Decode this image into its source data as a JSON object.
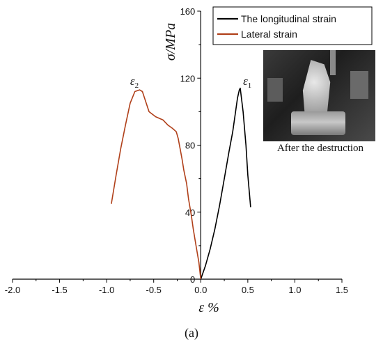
{
  "chart_data": {
    "type": "line",
    "title": "",
    "xlabel": "ε %",
    "ylabel": "σ/MPa",
    "xlim": [
      -2.0,
      1.5
    ],
    "ylim": [
      0,
      160
    ],
    "x_ticks": [
      "-2.0",
      "-1.5",
      "-1.0",
      "-0.5",
      "0.0",
      "0.5",
      "1.0",
      "1.5"
    ],
    "y_ticks": [
      "0",
      "40",
      "80",
      "120",
      "160"
    ],
    "legend_position": "top-right",
    "series": [
      {
        "name": "The longitudinal strain",
        "color": "#000000",
        "points": [
          [
            0.0,
            0
          ],
          [
            0.05,
            8
          ],
          [
            0.1,
            18
          ],
          [
            0.15,
            30
          ],
          [
            0.2,
            44
          ],
          [
            0.25,
            60
          ],
          [
            0.3,
            76
          ],
          [
            0.34,
            88
          ],
          [
            0.37,
            100
          ],
          [
            0.39,
            108
          ],
          [
            0.41,
            113
          ],
          [
            0.42,
            114
          ],
          [
            0.45,
            100
          ],
          [
            0.48,
            80
          ],
          [
            0.5,
            62
          ],
          [
            0.53,
            43
          ]
        ]
      },
      {
        "name": "Lateral strain",
        "color": "#b0401a",
        "points": [
          [
            0.0,
            0
          ],
          [
            -0.02,
            10
          ],
          [
            -0.05,
            20
          ],
          [
            -0.08,
            30
          ],
          [
            -0.1,
            38
          ],
          [
            -0.13,
            48
          ],
          [
            -0.15,
            57
          ],
          [
            -0.18,
            65
          ],
          [
            -0.2,
            72
          ],
          [
            -0.22,
            78
          ],
          [
            -0.24,
            84
          ],
          [
            -0.26,
            88
          ],
          [
            -0.3,
            90
          ],
          [
            -0.35,
            92
          ],
          [
            -0.4,
            95
          ],
          [
            -0.48,
            97
          ],
          [
            -0.55,
            100
          ],
          [
            -0.62,
            112
          ],
          [
            -0.65,
            113
          ],
          [
            -0.7,
            112
          ],
          [
            -0.75,
            105
          ],
          [
            -0.8,
            92
          ],
          [
            -0.85,
            78
          ],
          [
            -0.9,
            62
          ],
          [
            -0.95,
            45
          ]
        ]
      }
    ],
    "annotations": [
      {
        "text": "ε",
        "sub": "2",
        "x": -0.75,
        "y": 116
      },
      {
        "text": "ε",
        "sub": "1",
        "x": 0.45,
        "y": 116
      }
    ]
  },
  "photo": {
    "caption": "After the destruction"
  },
  "panel_label": "(a)"
}
